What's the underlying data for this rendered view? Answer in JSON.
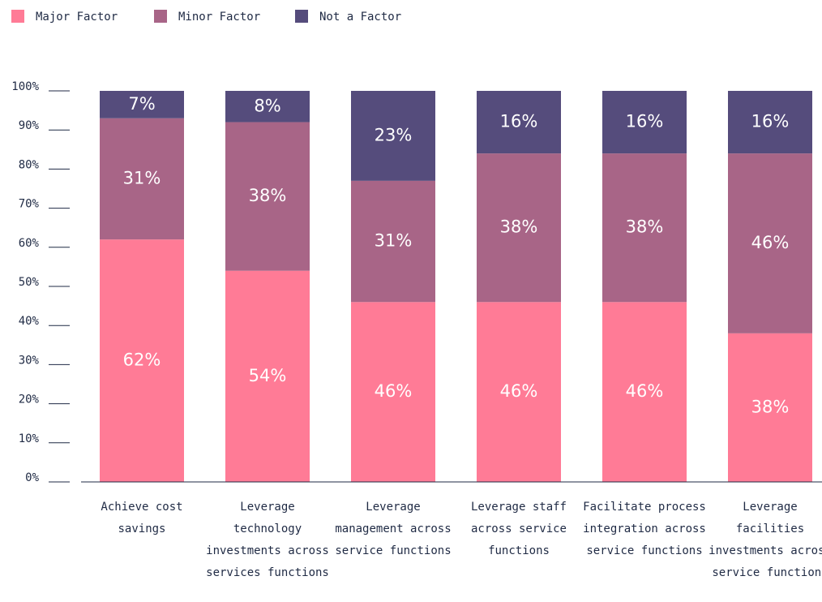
{
  "chart_data": {
    "type": "stacked_bar",
    "categories": [
      "Achieve cost savings",
      "Leverage technology investments across services functions",
      "Leverage management across service functions",
      "Leverage staff across service functions",
      "Facilitate process integration across service functions",
      "Leverage facilities investments across service functions"
    ],
    "series": [
      {
        "name": "Major Factor",
        "color": "#ff7b96",
        "values": [
          62,
          54,
          46,
          46,
          46,
          38
        ],
        "value_labels": [
          "62%",
          "54%",
          "46%",
          "46%",
          "46%",
          "38%"
        ]
      },
      {
        "name": "Minor Factor",
        "color": "#a86587",
        "values": [
          31,
          38,
          31,
          38,
          38,
          46
        ],
        "value_labels": [
          "31%",
          "38%",
          "31%",
          "38%",
          "38%",
          "46%"
        ]
      },
      {
        "name": "Not a Factor",
        "color": "#554c7c",
        "values": [
          7,
          8,
          23,
          16,
          16,
          16
        ],
        "value_labels": [
          "7%",
          "8%",
          "23%",
          "16%",
          "16%",
          "16%"
        ]
      }
    ],
    "ylim": [
      0,
      100
    ],
    "yticks": [
      {
        "value": 0,
        "label": "0%"
      },
      {
        "value": 10,
        "label": "10%"
      },
      {
        "value": 20,
        "label": "20%"
      },
      {
        "value": 30,
        "label": "30%"
      },
      {
        "value": 40,
        "label": "40%"
      },
      {
        "value": 50,
        "label": "50%"
      },
      {
        "value": 60,
        "label": "60%"
      },
      {
        "value": 70,
        "label": "70%"
      },
      {
        "value": 80,
        "label": "80%"
      },
      {
        "value": 90,
        "label": "90%"
      },
      {
        "value": 100,
        "label": "100%"
      }
    ],
    "legend": "top-left",
    "grid": false
  }
}
